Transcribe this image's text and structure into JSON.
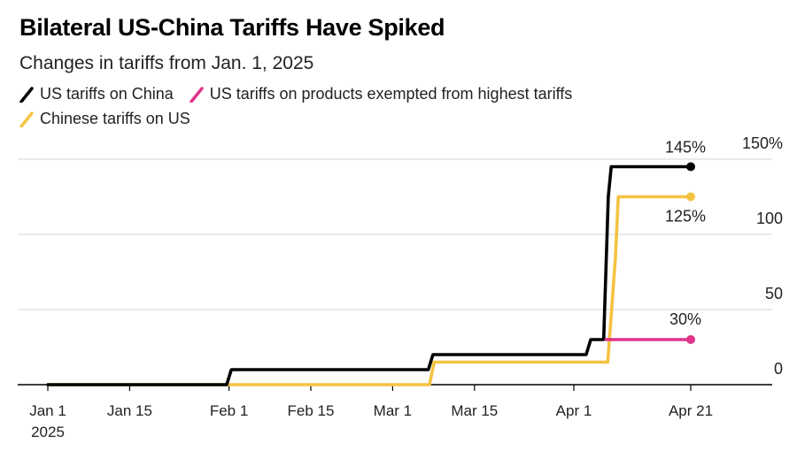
{
  "chart_data": {
    "type": "line",
    "title": "Bilateral US-China Tariffs Have Spiked",
    "subtitle": "Changes in tariffs from Jan. 1, 2025",
    "xlabel": "",
    "ylabel": "",
    "x_range": [
      0,
      112
    ],
    "ylim": [
      0,
      150
    ],
    "yticks": [
      {
        "value": 150,
        "label": "150%"
      },
      {
        "value": 100,
        "label": "100"
      },
      {
        "value": 50,
        "label": "50"
      },
      {
        "value": 0,
        "label": "0"
      }
    ],
    "xticks": [
      {
        "day": 0,
        "label": "Jan 1",
        "sublabel": "2025"
      },
      {
        "day": 14,
        "label": "Jan 15"
      },
      {
        "day": 31,
        "label": "Feb 1"
      },
      {
        "day": 45,
        "label": "Feb 15"
      },
      {
        "day": 59,
        "label": "Mar 1"
      },
      {
        "day": 73,
        "label": "Mar 15"
      },
      {
        "day": 90,
        "label": "Apr 1"
      },
      {
        "day": 110,
        "label": "Apr 21"
      }
    ],
    "series": [
      {
        "name": "US tariffs on China",
        "color": "#000000",
        "points": [
          [
            0,
            0
          ],
          [
            30.6,
            0
          ],
          [
            31.4,
            10
          ],
          [
            65.1,
            10
          ],
          [
            65.9,
            20
          ],
          [
            92.1,
            20
          ],
          [
            92.9,
            30
          ],
          [
            95.1,
            30
          ],
          [
            95.9,
            125
          ],
          [
            96.4,
            145
          ],
          [
            110,
            145
          ]
        ],
        "end_label": "145%"
      },
      {
        "name": "US tariffs on products exempted from highest tariffs",
        "color": "#e0338a",
        "points": [
          [
            95.5,
            30
          ],
          [
            110,
            30
          ]
        ],
        "end_label": "30%"
      },
      {
        "name": "Chinese tariffs on US",
        "color": "#f5c342",
        "points": [
          [
            0,
            0
          ],
          [
            65.3,
            0
          ],
          [
            66.1,
            15
          ],
          [
            95.8,
            15
          ],
          [
            97.1,
            84
          ],
          [
            97.6,
            125
          ],
          [
            110,
            125
          ]
        ],
        "end_label": "125%"
      }
    ],
    "legend": [
      "US tariffs on China",
      "US tariffs on products exempted from highest tariffs",
      "Chinese tariffs on US"
    ]
  }
}
